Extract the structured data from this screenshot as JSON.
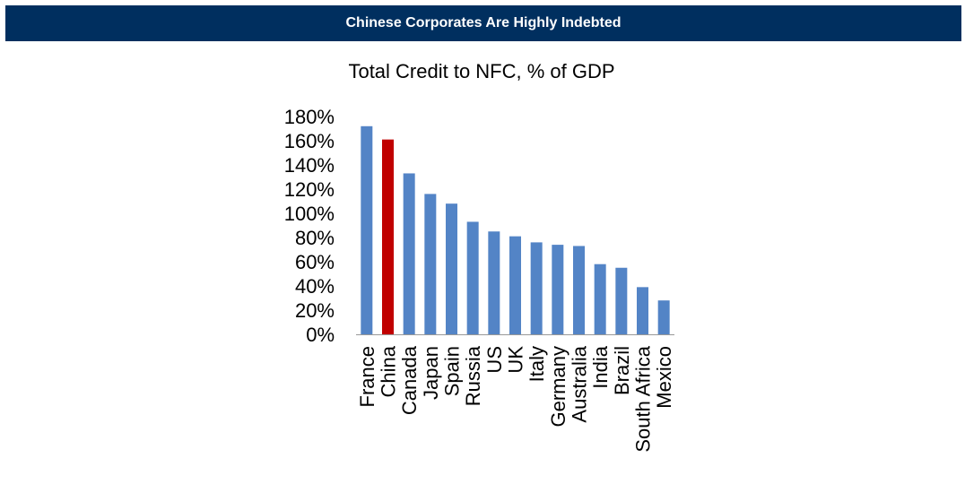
{
  "header": {
    "title": "Chinese Corporates Are Highly Indebted"
  },
  "colors": {
    "banner_bg": "#002f5f",
    "bar_default": "#5384c6",
    "bar_highlight": "#c00000"
  },
  "chart_data": {
    "type": "bar",
    "title": "Total Credit to NFC, % of GDP",
    "xlabel": "",
    "ylabel": "",
    "ylim": [
      0,
      180
    ],
    "y_ticks": [
      "0%",
      "20%",
      "40%",
      "60%",
      "80%",
      "100%",
      "120%",
      "140%",
      "160%",
      "180%"
    ],
    "y_tick_values": [
      0,
      20,
      40,
      60,
      80,
      100,
      120,
      140,
      160,
      180
    ],
    "categories": [
      "France",
      "China",
      "Canada",
      "Japan",
      "Spain",
      "Russia",
      "US",
      "UK",
      "Italy",
      "Germany",
      "Australia",
      "India",
      "Brazil",
      "South Africa",
      "Mexico"
    ],
    "values": [
      172,
      161,
      133,
      116,
      108,
      93,
      85,
      81,
      76,
      74,
      73,
      58,
      55,
      39,
      28
    ],
    "highlight": "China",
    "grid": false,
    "legend": "none"
  }
}
